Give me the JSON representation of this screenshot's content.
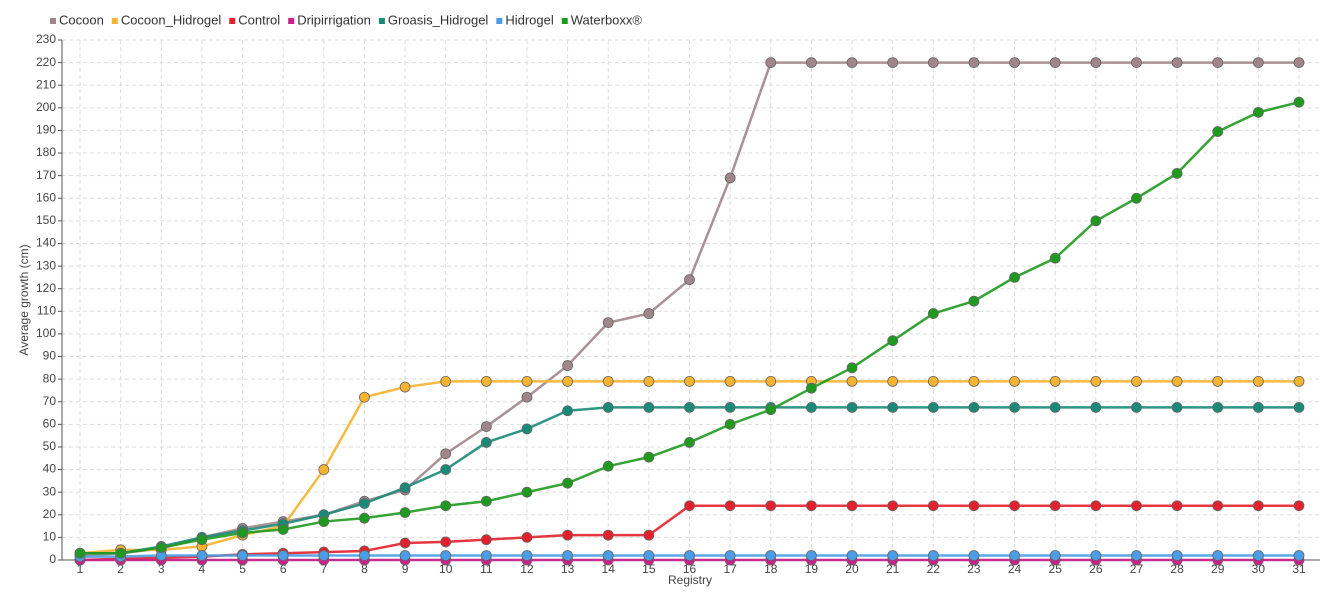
{
  "chart_data": {
    "type": "line",
    "xlabel": "Registry",
    "ylabel": "Average growth (cm)",
    "categories": [
      "1",
      "2",
      "3",
      "4",
      "5",
      "6",
      "7",
      "8",
      "9",
      "10",
      "11",
      "12",
      "13",
      "14",
      "15",
      "16",
      "17",
      "18",
      "19",
      "20",
      "21",
      "22",
      "23",
      "24",
      "25",
      "26",
      "27",
      "28",
      "29",
      "30",
      "31"
    ],
    "ylim": [
      0,
      230
    ],
    "yticks": [
      0,
      10,
      20,
      30,
      40,
      50,
      60,
      70,
      80,
      90,
      100,
      110,
      120,
      130,
      140,
      150,
      160,
      170,
      180,
      190,
      200,
      210,
      220,
      230
    ],
    "grid": true,
    "legend": "top-left",
    "series": [
      {
        "name": "Cocoon",
        "color": "#a0868a",
        "values": [
          2,
          3,
          5,
          10,
          14,
          17,
          20,
          26,
          31,
          47,
          59,
          72,
          86,
          105,
          109,
          124,
          169,
          220,
          220,
          220,
          220,
          220,
          220,
          220,
          220,
          220,
          220,
          220,
          220,
          220,
          220
        ]
      },
      {
        "name": "Cocoon_Hidrogel",
        "color": "#f5b32f",
        "values": [
          3,
          4.5,
          4.5,
          6,
          11,
          15,
          40,
          72,
          76.5,
          79,
          79,
          79,
          79,
          79,
          79,
          79,
          79,
          79,
          79,
          79,
          79,
          79,
          79,
          79,
          79,
          79,
          79,
          79,
          79,
          79,
          79
        ]
      },
      {
        "name": "Control",
        "color": "#e3202b",
        "values": [
          0,
          0.5,
          1,
          1.5,
          2.5,
          3,
          3.5,
          4,
          7.5,
          8,
          9,
          10,
          11,
          11,
          11,
          24,
          24,
          24,
          24,
          24,
          24,
          24,
          24,
          24,
          24,
          24,
          24,
          24,
          24,
          24,
          24
        ]
      },
      {
        "name": "Dripirrigation",
        "color": "#cc1f8a",
        "values": [
          0,
          0,
          0,
          0,
          0,
          0,
          0,
          0,
          0,
          0,
          0,
          0,
          0,
          0,
          0,
          0,
          0,
          0,
          0,
          0,
          0,
          0,
          0,
          0,
          0,
          0,
          0,
          0,
          0,
          0,
          0
        ]
      },
      {
        "name": "Groasis_Hidrogel",
        "color": "#1a8a78",
        "values": [
          3,
          3,
          6,
          10,
          13,
          16,
          20,
          25,
          32,
          40,
          52,
          58,
          66,
          67.5,
          67.5,
          67.5,
          67.5,
          67.5,
          67.5,
          67.5,
          67.5,
          67.5,
          67.5,
          67.5,
          67.5,
          67.5,
          67.5,
          67.5,
          67.5,
          67.5,
          67.5
        ]
      },
      {
        "name": "Hidrogel",
        "color": "#4a9de6",
        "values": [
          1.5,
          1.5,
          2,
          2,
          2,
          2,
          2,
          2,
          2,
          2,
          2,
          2,
          2,
          2,
          2,
          2,
          2,
          2,
          2,
          2,
          2,
          2,
          2,
          2,
          2,
          2,
          2,
          2,
          2,
          2,
          2
        ]
      },
      {
        "name": "Waterboxx®",
        "color": "#1e9a1e",
        "values": [
          3,
          3,
          5.5,
          9,
          12,
          13.5,
          17,
          18.5,
          21,
          24,
          26,
          30,
          34,
          41.5,
          45.5,
          52,
          60,
          66.5,
          76,
          85,
          97,
          109,
          114.5,
          125,
          133.5,
          150,
          160,
          171,
          189.5,
          198,
          202.5
        ]
      }
    ]
  }
}
